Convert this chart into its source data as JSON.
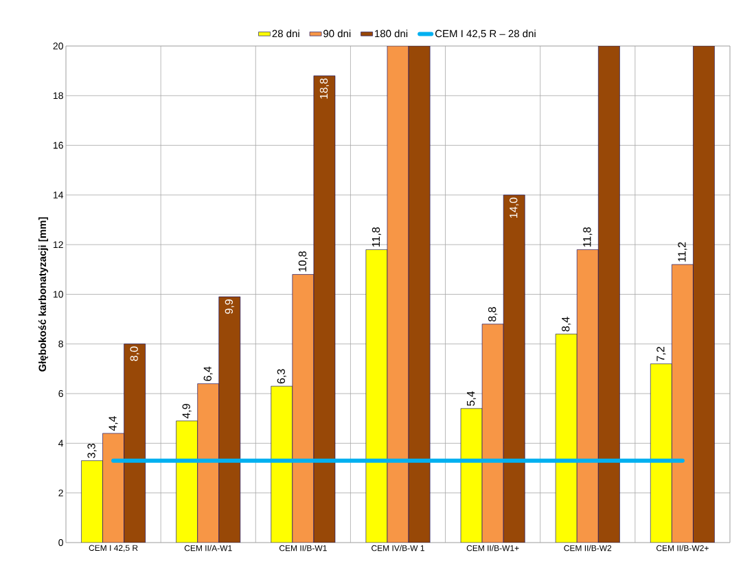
{
  "chart_data": {
    "type": "bar",
    "ylabel": "**Głębokość karbonatyzacji [mm]**",
    "categories": [
      "CEM I 42,5 R",
      "CEM II/A-W1",
      "CEM II/B-W1",
      "CEM IV/B-W 1",
      "CEM II/B-W1+",
      "CEM II/B-W2",
      "CEM II/B-W2+"
    ],
    "series": [
      {
        "name": "28 dni",
        "color": "#ffff00",
        "values": [
          3.3,
          4.9,
          6.3,
          11.8,
          5.4,
          8.4,
          7.2
        ],
        "value_labels": [
          "3,3",
          "4,9",
          "6,3",
          "11,8",
          "5,4",
          "8,4",
          "7,2"
        ]
      },
      {
        "name": "90 dni",
        "color": "#f79646",
        "values": [
          4.4,
          6.4,
          10.8,
          20,
          8.8,
          11.8,
          11.2
        ],
        "value_labels": [
          "4,4",
          "6,4",
          "10,8",
          null,
          "8,8",
          "11,8",
          "11,2"
        ]
      },
      {
        "name": "180 dni",
        "color": "#984807",
        "values": [
          8.0,
          9.9,
          18.8,
          20,
          14.0,
          20,
          20
        ],
        "value_labels": [
          "8,0",
          "9,9",
          "18,8",
          null,
          "14,0",
          null,
          null
        ]
      },
      {
        "name": "CEM I 42,5 R – 28 dni",
        "type": "line",
        "color": "#00b0f0",
        "values": [
          3.3,
          3.3,
          3.3,
          3.3,
          3.3,
          3.3,
          3.3
        ]
      }
    ],
    "ylim": [
      0,
      20
    ],
    "yticks": [
      0,
      2,
      4,
      6,
      8,
      10,
      12,
      14,
      16,
      18,
      20
    ],
    "grid": true,
    "legend": "top"
  }
}
